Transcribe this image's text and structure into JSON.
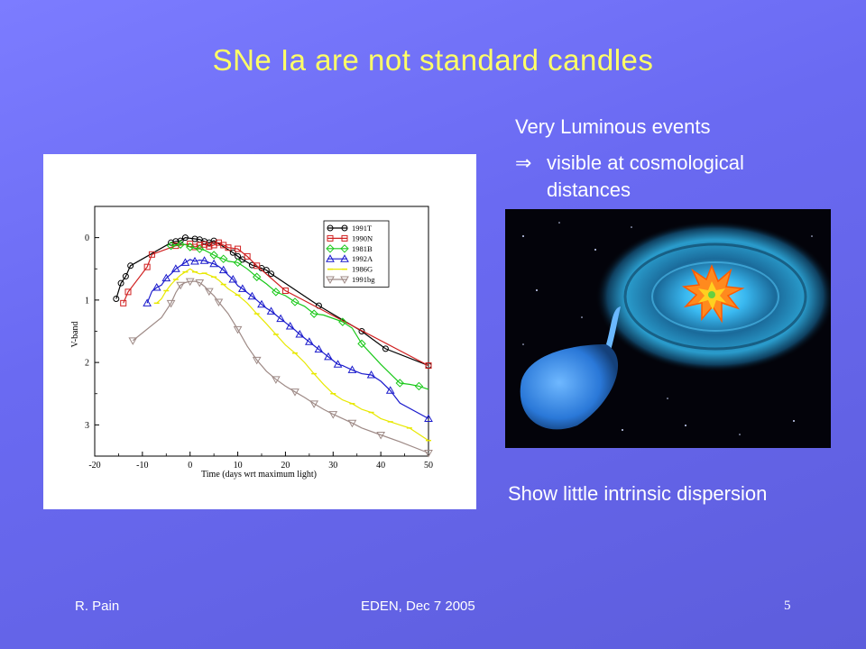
{
  "slide": {
    "title": "SNe Ia are not standard candles",
    "bullet1": "Very Luminous events",
    "bullet2_arrow": "⇒",
    "bullet2": "visible at cosmological distances",
    "caption": "Show little intrinsic dispersion"
  },
  "footer": {
    "author": "R. Pain",
    "event": "EDEN, Dec 7 2005",
    "page": "5"
  },
  "illustration": {
    "icon": "binary-star-accretion-disk-explosion"
  },
  "chart_data": {
    "type": "line",
    "xlabel": "Time (days wrt maximum light)",
    "ylabel": "V-band",
    "xlim": [
      -20,
      50
    ],
    "ylim": [
      -0.5,
      3.5
    ],
    "y_inverted": true,
    "xticks": [
      -20,
      -10,
      0,
      10,
      20,
      30,
      40,
      50
    ],
    "yticks": [
      0,
      1,
      2,
      3
    ],
    "grid": false,
    "legend_position": "top-right",
    "series": [
      {
        "name": "1991T",
        "color": "#000000",
        "marker": "circle",
        "x": [
          -15.5,
          -14.5,
          -13.5,
          -12.5,
          -4,
          -3,
          -2,
          -1,
          1,
          2,
          3,
          4,
          5,
          9,
          10,
          11,
          13,
          15,
          16,
          17,
          27,
          36,
          41,
          50
        ],
        "y": [
          0.98,
          0.73,
          0.62,
          0.45,
          0.08,
          0.06,
          0.05,
          0.0,
          0.02,
          0.03,
          0.06,
          0.08,
          0.05,
          0.24,
          0.3,
          0.35,
          0.44,
          0.49,
          0.52,
          0.58,
          1.09,
          1.5,
          1.78,
          2.05
        ]
      },
      {
        "name": "1990N",
        "color": "#d02020",
        "marker": "square",
        "x": [
          -14,
          -13,
          -9,
          -8,
          -3,
          0,
          1,
          2,
          3,
          4,
          5,
          6,
          7,
          8,
          10,
          12,
          14,
          20,
          50
        ],
        "y": [
          1.05,
          0.87,
          0.47,
          0.27,
          0.13,
          0.1,
          0.15,
          0.12,
          0.11,
          0.14,
          0.12,
          0.08,
          0.12,
          0.16,
          0.18,
          0.3,
          0.45,
          0.85,
          2.05
        ]
      },
      {
        "name": "1981B",
        "color": "#18c818",
        "marker": "diamond",
        "x": [
          -4,
          -3,
          -2,
          -1,
          0,
          1,
          2,
          3,
          5,
          6,
          7,
          8,
          10,
          12,
          14,
          16,
          18,
          20,
          22,
          24,
          26,
          28,
          32,
          34,
          36,
          40,
          44,
          46,
          48,
          50
        ],
        "y": [
          0.13,
          0.12,
          0.11,
          0.11,
          0.15,
          0.17,
          0.18,
          0.2,
          0.28,
          0.32,
          0.34,
          0.38,
          0.4,
          0.5,
          0.63,
          0.74,
          0.87,
          0.93,
          1.03,
          1.1,
          1.22,
          1.24,
          1.35,
          1.45,
          1.7,
          2.03,
          2.33,
          2.35,
          2.38,
          2.43
        ]
      },
      {
        "name": "1992A",
        "color": "#1a1acc",
        "marker": "triangle",
        "x": [
          -9,
          -8,
          -7,
          -6,
          -5,
          -4,
          -3,
          -2,
          -1,
          0,
          1,
          2,
          3,
          4,
          5,
          6,
          7,
          8,
          9,
          10,
          11,
          12,
          13,
          14,
          15,
          16,
          17,
          18,
          19,
          20,
          21,
          22,
          23,
          24,
          25,
          26,
          27,
          28,
          29,
          30,
          31,
          32,
          34,
          36,
          38,
          40,
          42,
          44,
          50
        ],
        "y": [
          1.05,
          0.86,
          0.8,
          0.76,
          0.65,
          0.58,
          0.5,
          0.45,
          0.4,
          0.35,
          0.38,
          0.36,
          0.37,
          0.4,
          0.42,
          0.46,
          0.52,
          0.6,
          0.67,
          0.77,
          0.82,
          0.88,
          0.94,
          1.0,
          1.07,
          1.13,
          1.18,
          1.24,
          1.3,
          1.36,
          1.42,
          1.48,
          1.55,
          1.61,
          1.67,
          1.73,
          1.79,
          1.85,
          1.91,
          1.97,
          2.03,
          2.05,
          2.12,
          2.18,
          2.2,
          2.3,
          2.45,
          2.65,
          2.9
        ]
      },
      {
        "name": "1986G",
        "color": "#e8e800",
        "marker": "line",
        "x": [
          -7,
          -6,
          -5,
          -4,
          -3,
          -2,
          -1,
          0,
          1,
          2,
          3,
          4,
          5,
          6,
          7,
          8,
          10,
          12,
          14,
          16,
          18,
          20,
          22,
          24,
          26,
          28,
          30,
          32,
          34,
          36,
          38,
          40,
          42,
          44,
          46,
          48,
          50
        ],
        "y": [
          1.05,
          0.98,
          0.85,
          0.75,
          0.67,
          0.6,
          0.55,
          0.5,
          0.55,
          0.58,
          0.57,
          0.6,
          0.63,
          0.68,
          0.75,
          0.82,
          0.92,
          1.05,
          1.22,
          1.38,
          1.55,
          1.72,
          1.85,
          2.0,
          2.18,
          2.35,
          2.5,
          2.6,
          2.66,
          2.75,
          2.8,
          2.9,
          2.95,
          3.0,
          3.05,
          3.15,
          3.25
        ]
      },
      {
        "name": "1991bg",
        "color": "#9e8a86",
        "marker": "inv-triangle",
        "x": [
          -12,
          -6,
          -4,
          -3,
          -2,
          -1,
          0,
          1,
          2,
          3,
          4,
          5,
          6,
          8,
          10,
          12,
          14,
          16,
          18,
          20,
          22,
          24,
          26,
          28,
          30,
          32,
          34,
          36,
          40,
          44,
          50
        ],
        "y": [
          1.65,
          1.28,
          1.05,
          0.88,
          0.76,
          0.72,
          0.7,
          0.7,
          0.72,
          0.78,
          0.86,
          0.93,
          1.03,
          1.22,
          1.47,
          1.74,
          1.96,
          2.14,
          2.27,
          2.38,
          2.47,
          2.56,
          2.66,
          2.75,
          2.83,
          2.9,
          2.97,
          3.05,
          3.16,
          3.27,
          3.45
        ]
      }
    ]
  }
}
